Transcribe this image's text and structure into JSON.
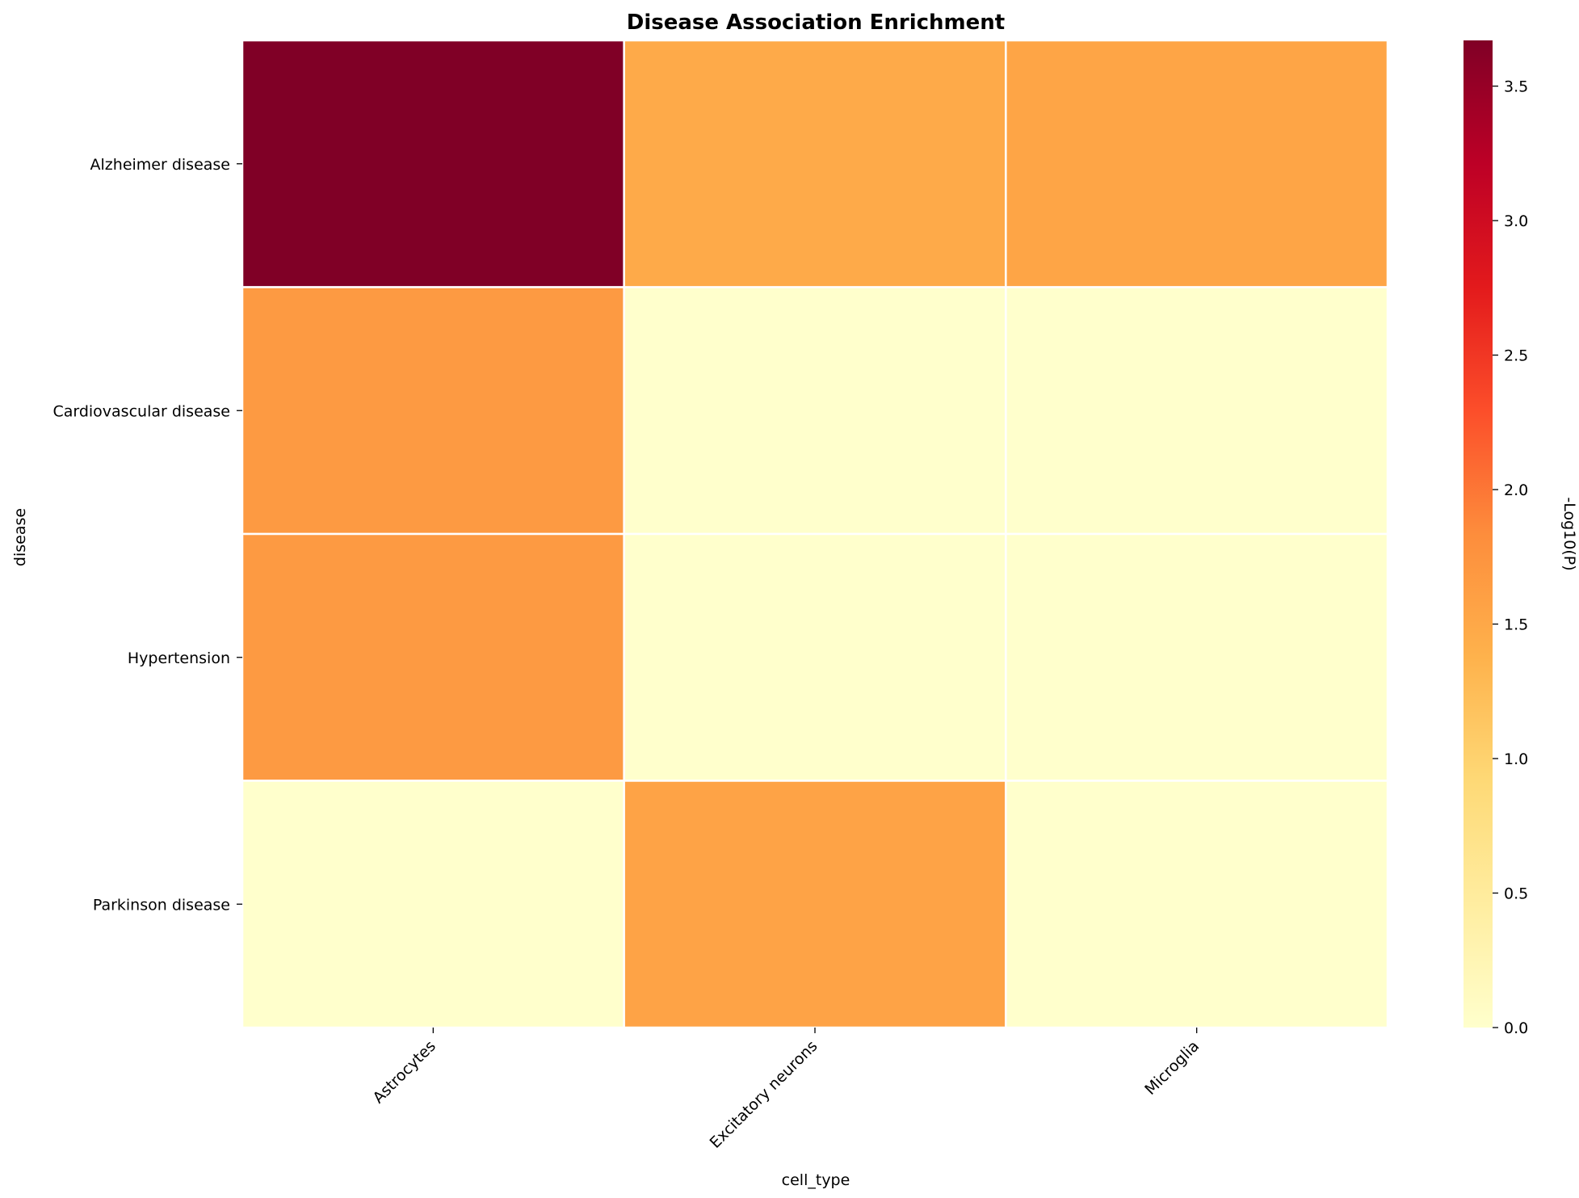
{
  "chart_data": {
    "type": "heatmap",
    "title": "Disease Association Enrichment",
    "xlabel": "cell_type",
    "ylabel": "disease",
    "x_categories": [
      "Astrocytes",
      "Excitatory neurons",
      "Microglia"
    ],
    "y_categories": [
      "Alzheimer disease",
      "Cardiovascular disease",
      "Hypertension",
      "Parkinson disease"
    ],
    "values": [
      [
        3.67,
        1.47,
        1.54
      ],
      [
        1.67,
        0.0,
        0.0
      ],
      [
        1.67,
        0.0,
        0.0
      ],
      [
        0.0,
        1.56,
        0.0
      ]
    ],
    "colorbar": {
      "label": "-Log10(P)",
      "vmin": 0.0,
      "vmax": 3.67,
      "ticks": [
        "0.0",
        "0.5",
        "1.0",
        "1.5",
        "2.0",
        "2.5",
        "3.0",
        "3.5"
      ],
      "colormap": "YlOrRd"
    },
    "grid": false,
    "cell_border_color": "#ffffff"
  }
}
